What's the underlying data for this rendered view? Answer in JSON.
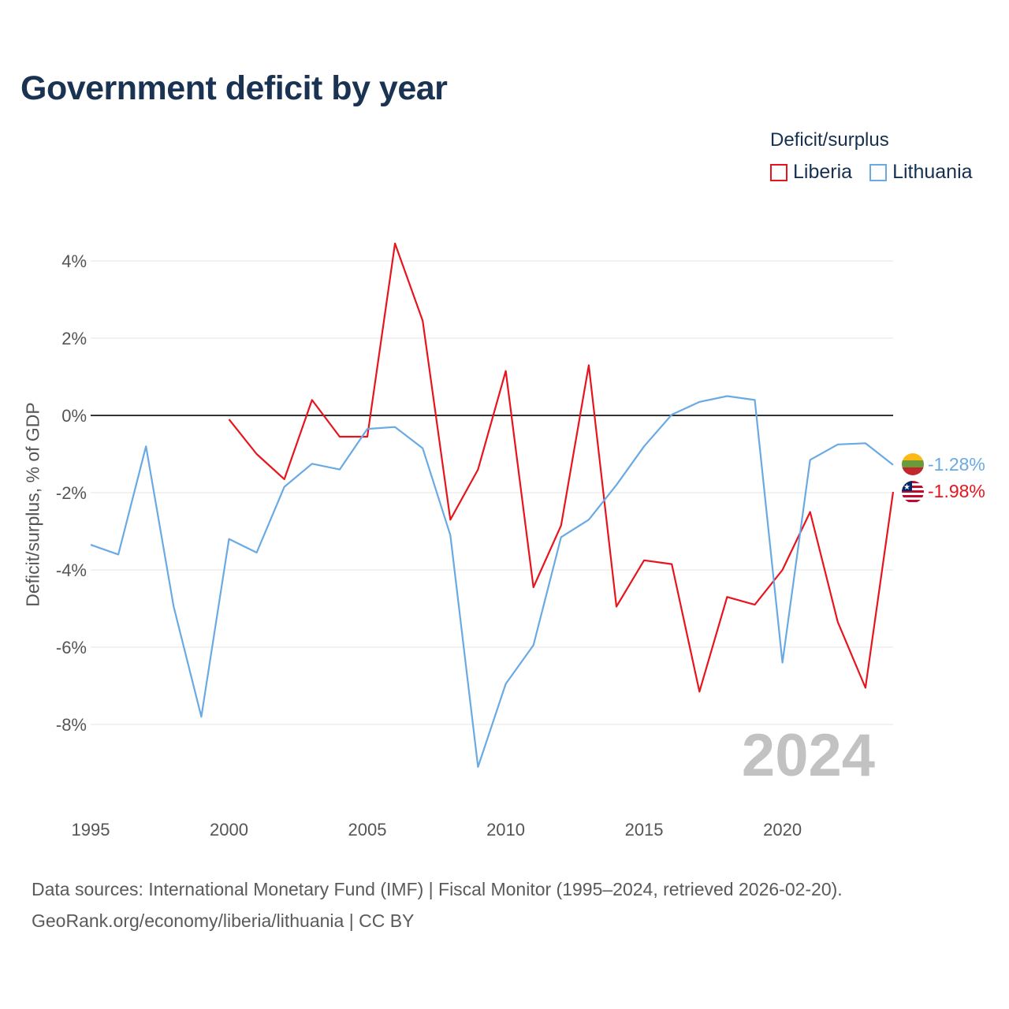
{
  "title": "Government deficit by year",
  "legend": {
    "title": "Deficit/surplus",
    "items": [
      "Liberia",
      "Lithuania"
    ]
  },
  "colors": {
    "liberia": "#e8141d",
    "lithuania": "#6aaae4"
  },
  "current_year_label": "2024",
  "source": {
    "line1": "Data sources: International Monetary Fund (IMF) | Fiscal Monitor (1995–2024, retrieved 2026-02-20).",
    "line2": "GeoRank.org/economy/liberia/lithuania | CC BY"
  },
  "chart_data": {
    "type": "line",
    "title": "Government deficit by year",
    "xlabel": "",
    "ylabel": "Deficit/surplus, % of GDP",
    "xlim": [
      1995,
      2024
    ],
    "ylim": [
      -10,
      5
    ],
    "x_ticks": [
      1995,
      2000,
      2005,
      2010,
      2015,
      2020
    ],
    "y_ticks": [
      4,
      2,
      0,
      -2,
      -4,
      -6,
      -8
    ],
    "y_tick_labels": [
      "4%",
      "2%",
      "0%",
      "-2%",
      "-4%",
      "-6%",
      "-8%"
    ],
    "series": [
      {
        "name": "Liberia",
        "x": [
          2000,
          2001,
          2002,
          2003,
          2004,
          2005,
          2006,
          2007,
          2008,
          2009,
          2010,
          2011,
          2012,
          2013,
          2014,
          2015,
          2016,
          2017,
          2018,
          2019,
          2020,
          2021,
          2022,
          2023,
          2024
        ],
        "values": [
          -0.1,
          -1.0,
          -1.65,
          0.4,
          -0.55,
          -0.55,
          4.45,
          2.45,
          -2.7,
          -1.4,
          1.15,
          -4.45,
          -2.85,
          1.3,
          -4.95,
          -3.75,
          -3.85,
          -7.15,
          -4.7,
          -4.9,
          -4.0,
          -2.5,
          -5.35,
          -7.05,
          -1.98
        ],
        "end_label": "-1.98%"
      },
      {
        "name": "Lithuania",
        "x": [
          1995,
          1996,
          1997,
          1998,
          1999,
          2000,
          2001,
          2002,
          2003,
          2004,
          2005,
          2006,
          2007,
          2008,
          2009,
          2010,
          2011,
          2012,
          2013,
          2014,
          2015,
          2016,
          2017,
          2018,
          2019,
          2020,
          2021,
          2022,
          2023,
          2024
        ],
        "values": [
          -3.35,
          -3.6,
          -0.8,
          -4.95,
          -7.8,
          -3.2,
          -3.55,
          -1.85,
          -1.25,
          -1.4,
          -0.35,
          -0.3,
          -0.85,
          -3.1,
          -9.1,
          -6.95,
          -5.95,
          -3.15,
          -2.7,
          -1.8,
          -0.8,
          0.02,
          0.35,
          0.5,
          0.4,
          -6.4,
          -1.15,
          -0.75,
          -0.72,
          -1.28
        ],
        "end_label": "-1.28%"
      }
    ]
  }
}
